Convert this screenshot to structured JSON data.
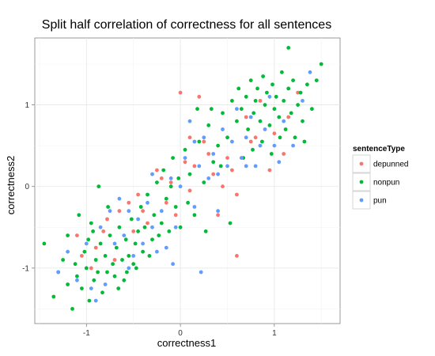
{
  "chart_data": {
    "type": "scatter",
    "title": "Split half correlation of correctness for all sentences",
    "xlabel": "correctness1",
    "ylabel": "correctness2",
    "xlim": [
      -1.55,
      1.7
    ],
    "ylim": [
      -1.68,
      1.82
    ],
    "x_ticks": [
      -1,
      0,
      1
    ],
    "y_ticks": [
      -1,
      0,
      1
    ],
    "x_tick_labels": [
      "-1",
      "0",
      "1"
    ],
    "y_tick_labels": [
      "-1",
      "0",
      "1"
    ],
    "grid": true,
    "legend": {
      "title": "sentenceType",
      "position": "right",
      "entries": [
        "depunned",
        "nonpun",
        "pun"
      ]
    },
    "colors": {
      "depunned": "#f8766d",
      "nonpun": "#00ba38",
      "pun": "#619cff"
    },
    "series": [
      {
        "name": "depunned",
        "points": [
          [
            -1.1,
            -0.6
          ],
          [
            -1.05,
            -0.85
          ],
          [
            -0.95,
            -1.0
          ],
          [
            -0.9,
            -0.75
          ],
          [
            -0.82,
            -0.55
          ],
          [
            -0.78,
            -0.4
          ],
          [
            -0.7,
            -0.9
          ],
          [
            -0.65,
            -0.3
          ],
          [
            -0.55,
            -0.2
          ],
          [
            -0.5,
            -0.55
          ],
          [
            -0.45,
            -0.1
          ],
          [
            -0.4,
            -0.3
          ],
          [
            -0.35,
            -0.45
          ],
          [
            -0.2,
            0.1
          ],
          [
            -0.15,
            -0.2
          ],
          [
            -0.1,
            0.05
          ],
          [
            -0.05,
            -0.35
          ],
          [
            0.0,
            1.15
          ],
          [
            0.05,
            0.3
          ],
          [
            0.1,
            -0.05
          ],
          [
            0.1,
            0.6
          ],
          [
            0.15,
            0.25
          ],
          [
            0.2,
            1.1
          ],
          [
            0.25,
            0.55
          ],
          [
            0.3,
            0.4
          ],
          [
            0.4,
            -0.35
          ],
          [
            0.45,
            0.0
          ],
          [
            0.5,
            0.35
          ],
          [
            0.55,
            0.2
          ],
          [
            0.6,
            -0.1
          ],
          [
            0.6,
            -0.85
          ],
          [
            0.7,
            0.85
          ],
          [
            0.75,
            0.55
          ],
          [
            0.8,
            0.6
          ],
          [
            0.85,
            1.05
          ],
          [
            0.95,
            0.2
          ],
          [
            1.0,
            0.65
          ],
          [
            1.1,
            0.4
          ],
          [
            1.15,
            0.85
          ],
          [
            1.25,
            1.15
          ],
          [
            -0.25,
            0.2
          ],
          [
            0.35,
            0.15
          ]
        ]
      },
      {
        "name": "nonpun",
        "points": [
          [
            -1.45,
            -0.7
          ],
          [
            -1.35,
            -1.35
          ],
          [
            -1.3,
            -1.05
          ],
          [
            -1.25,
            -0.9
          ],
          [
            -1.2,
            -1.2
          ],
          [
            -1.15,
            -1.5
          ],
          [
            -1.12,
            -0.95
          ],
          [
            -1.1,
            -1.1
          ],
          [
            -1.05,
            -1.25
          ],
          [
            -1.02,
            -0.8
          ],
          [
            -1.0,
            -1.0
          ],
          [
            -0.98,
            -0.65
          ],
          [
            -0.95,
            -0.45
          ],
          [
            -0.92,
            -1.15
          ],
          [
            -0.9,
            -0.9
          ],
          [
            -0.88,
            -1.05
          ],
          [
            -0.85,
            -0.7
          ],
          [
            -0.83,
            -1.3
          ],
          [
            -0.8,
            -0.85
          ],
          [
            -0.78,
            -1.05
          ],
          [
            -0.75,
            -0.6
          ],
          [
            -0.72,
            -0.95
          ],
          [
            -0.7,
            -1.1
          ],
          [
            -0.68,
            -0.75
          ],
          [
            -0.65,
            -0.5
          ],
          [
            -0.62,
            -0.9
          ],
          [
            -0.6,
            -1.15
          ],
          [
            -0.58,
            -0.65
          ],
          [
            -0.55,
            -0.85
          ],
          [
            -0.52,
            -0.4
          ],
          [
            -0.5,
            -0.95
          ],
          [
            -0.48,
            -0.7
          ],
          [
            -0.45,
            -0.55
          ],
          [
            -0.42,
            -0.25
          ],
          [
            -0.4,
            -0.8
          ],
          [
            -0.38,
            -0.5
          ],
          [
            -0.35,
            -0.1
          ],
          [
            -0.3,
            -0.65
          ],
          [
            -0.28,
            -0.35
          ],
          [
            -0.25,
            0.05
          ],
          [
            -0.2,
            -0.45
          ],
          [
            -0.18,
            0.2
          ],
          [
            -0.15,
            -0.15
          ],
          [
            -0.12,
            -0.55
          ],
          [
            -0.1,
            0.0
          ],
          [
            -0.08,
            0.35
          ],
          [
            -0.05,
            -0.25
          ],
          [
            -0.02,
            0.1
          ],
          [
            0.0,
            -0.5
          ],
          [
            0.05,
            0.45
          ],
          [
            0.1,
            0.15
          ],
          [
            0.15,
            -0.35
          ],
          [
            0.2,
            0.55
          ],
          [
            0.25,
            0.05
          ],
          [
            0.3,
            0.75
          ],
          [
            0.35,
            0.3
          ],
          [
            0.4,
            0.5
          ],
          [
            0.45,
            0.9
          ],
          [
            0.5,
            0.6
          ],
          [
            0.55,
            1.05
          ],
          [
            0.6,
            0.8
          ],
          [
            0.62,
            1.2
          ],
          [
            0.65,
            0.95
          ],
          [
            0.7,
            1.1
          ],
          [
            0.72,
            0.7
          ],
          [
            0.75,
            1.3
          ],
          [
            0.78,
            0.9
          ],
          [
            0.8,
            1.05
          ],
          [
            0.82,
            1.2
          ],
          [
            0.85,
            0.8
          ],
          [
            0.88,
            1.35
          ],
          [
            0.9,
            1.0
          ],
          [
            0.92,
            1.15
          ],
          [
            0.95,
            0.75
          ],
          [
            0.98,
            1.25
          ],
          [
            1.0,
            0.95
          ],
          [
            1.02,
            1.1
          ],
          [
            1.05,
            0.85
          ],
          [
            1.08,
            1.4
          ],
          [
            1.1,
            1.05
          ],
          [
            1.12,
            0.7
          ],
          [
            1.15,
            1.2
          ],
          [
            1.18,
            0.9
          ],
          [
            1.2,
            1.3
          ],
          [
            1.25,
            1.0
          ],
          [
            1.28,
            1.15
          ],
          [
            1.3,
            0.8
          ],
          [
            1.35,
            1.25
          ],
          [
            1.4,
            0.95
          ],
          [
            1.15,
            1.7
          ],
          [
            1.45,
            1.3
          ],
          [
            1.5,
            1.5
          ],
          [
            -1.2,
            -0.6
          ],
          [
            -0.97,
            -1.4
          ],
          [
            -0.87,
            0.0
          ],
          [
            -0.77,
            -0.25
          ],
          [
            -0.66,
            -1.25
          ],
          [
            -0.57,
            -1.05
          ],
          [
            -0.47,
            -1.0
          ],
          [
            -0.33,
            -0.85
          ],
          [
            -0.23,
            -0.6
          ],
          [
            0.08,
            -0.2
          ],
          [
            0.27,
            -0.55
          ],
          [
            0.43,
            0.25
          ],
          [
            0.53,
            -0.45
          ],
          [
            0.67,
            0.35
          ],
          [
            0.77,
            0.45
          ],
          [
            0.87,
            0.55
          ],
          [
            0.97,
            0.4
          ],
          [
            1.06,
            0.6
          ],
          [
            1.22,
            0.6
          ],
          [
            1.32,
            0.55
          ],
          [
            -1.08,
            -0.35
          ],
          [
            -0.93,
            -0.55
          ],
          [
            0.18,
            0.95
          ],
          [
            0.33,
            0.95
          ]
        ]
      },
      {
        "name": "pun",
        "points": [
          [
            -1.3,
            -1.05
          ],
          [
            -1.2,
            -0.8
          ],
          [
            -1.1,
            -1.15
          ],
          [
            -1.0,
            -0.7
          ],
          [
            -0.95,
            -1.25
          ],
          [
            -0.9,
            -1.4
          ],
          [
            -0.85,
            -0.5
          ],
          [
            -0.8,
            -1.2
          ],
          [
            -0.75,
            -0.3
          ],
          [
            -0.7,
            -0.7
          ],
          [
            -0.65,
            -0.15
          ],
          [
            -0.6,
            -0.6
          ],
          [
            -0.55,
            -0.3
          ],
          [
            -0.5,
            -0.85
          ],
          [
            -0.45,
            -0.4
          ],
          [
            -0.4,
            -0.7
          ],
          [
            -0.35,
            -0.2
          ],
          [
            -0.3,
            -0.5
          ],
          [
            -0.25,
            -0.8
          ],
          [
            -0.2,
            -0.3
          ],
          [
            -0.15,
            -0.75
          ],
          [
            -0.1,
            0.1
          ],
          [
            -0.05,
            -0.5
          ],
          [
            0.0,
            0.0
          ],
          [
            0.05,
            0.35
          ],
          [
            0.1,
            0.8
          ],
          [
            0.15,
            -0.25
          ],
          [
            0.2,
            0.25
          ],
          [
            0.22,
            -1.05
          ],
          [
            0.25,
            0.6
          ],
          [
            0.3,
            0.1
          ],
          [
            0.35,
            0.4
          ],
          [
            0.4,
            0.15
          ],
          [
            0.45,
            0.7
          ],
          [
            0.5,
            0.25
          ],
          [
            0.55,
            0.55
          ],
          [
            0.6,
            0.95
          ],
          [
            0.65,
            0.35
          ],
          [
            0.7,
            0.6
          ],
          [
            0.75,
            0.85
          ],
          [
            0.8,
            0.25
          ],
          [
            0.85,
            0.5
          ],
          [
            0.9,
            0.7
          ],
          [
            0.95,
            1.1
          ],
          [
            1.0,
            0.5
          ],
          [
            1.05,
            0.3
          ],
          [
            1.1,
            0.8
          ],
          [
            1.2,
            0.5
          ],
          [
            1.3,
            1.05
          ],
          [
            1.38,
            1.4
          ],
          [
            -0.55,
            -1.0
          ],
          [
            -0.3,
            0.15
          ],
          [
            0.15,
            0.55
          ],
          [
            0.4,
            -0.3
          ],
          [
            0.7,
            0.25
          ],
          [
            -0.08,
            -0.95
          ]
        ]
      }
    ]
  }
}
